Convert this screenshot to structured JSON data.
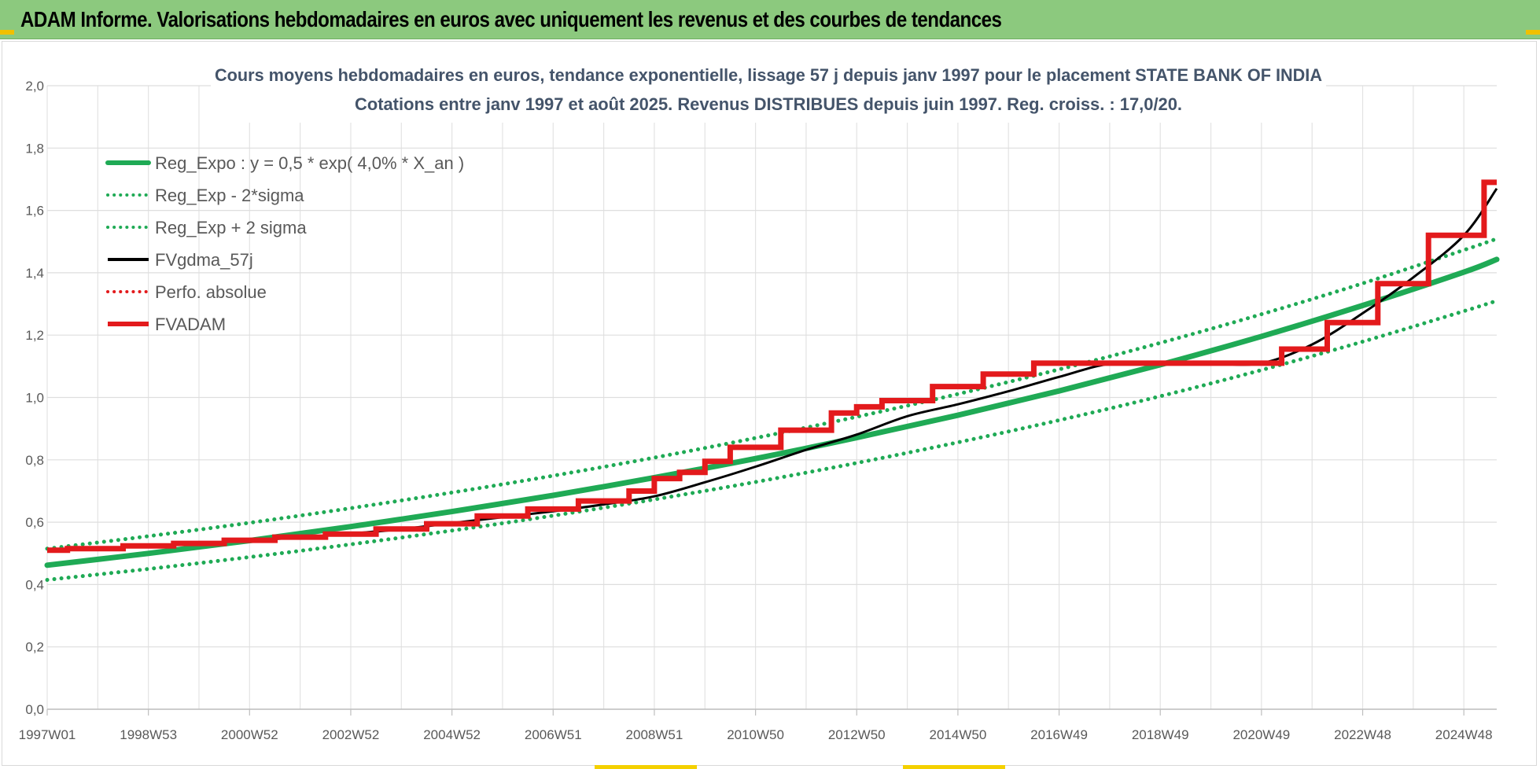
{
  "header": {
    "title": "ADAM Informe. Valorisations hebdomadaires en euros avec uniquement les revenus et des courbes de tendances"
  },
  "chart_data": {
    "type": "line",
    "title": "Cours moyens hebdomadaires en euros, tendance exponentielle, lissage 57 j depuis janv 1997  pour le placement STATE BANK OF INDIA",
    "subtitle": "Cotations entre janv 1997 et août 2025.  Revenus DISTRIBUES depuis juin 1997.  Reg. croiss. : 17,0/20.",
    "xlabel": "",
    "ylabel": "",
    "ylim": [
      0,
      2.0
    ],
    "xlim": [
      1997.0,
      2025.65
    ],
    "yticks": [
      "0,0",
      "0,2",
      "0,4",
      "0,6",
      "0,8",
      "1,0",
      "1,2",
      "1,4",
      "1,6",
      "1,8",
      "2,0"
    ],
    "xticks": [
      {
        "label": "1997W01",
        "x": 1997.0
      },
      {
        "label": "1998W53",
        "x": 1999.0
      },
      {
        "label": "2000W52",
        "x": 2001.0
      },
      {
        "label": "2002W52",
        "x": 2003.0
      },
      {
        "label": "2004W52",
        "x": 2005.0
      },
      {
        "label": "2006W51",
        "x": 2007.0
      },
      {
        "label": "2008W51",
        "x": 2009.0
      },
      {
        "label": "2010W50",
        "x": 2011.0
      },
      {
        "label": "2012W50",
        "x": 2013.0
      },
      {
        "label": "2014W50",
        "x": 2015.0
      },
      {
        "label": "2016W49",
        "x": 2017.0
      },
      {
        "label": "2018W49",
        "x": 2019.0
      },
      {
        "label": "2020W49",
        "x": 2021.0
      },
      {
        "label": "2022W48",
        "x": 2023.0
      },
      {
        "label": "2024W48",
        "x": 2025.0
      }
    ],
    "grid": true,
    "legend_position": "top-left",
    "series": [
      {
        "name": "Reg_Expo : y = 0,5 * exp( 4,0% *  X_an )",
        "style": "solid-thick",
        "color": "#1faa55",
        "x": [
          1997.0,
          1999.0,
          2001.0,
          2003.0,
          2005.0,
          2007.0,
          2009.0,
          2011.0,
          2013.0,
          2015.0,
          2017.0,
          2019.0,
          2021.0,
          2023.0,
          2025.0,
          2025.65
        ],
        "y": [
          0.462,
          0.5,
          0.541,
          0.586,
          0.634,
          0.686,
          0.743,
          0.804,
          0.871,
          0.943,
          1.021,
          1.105,
          1.196,
          1.295,
          1.402,
          1.443
        ]
      },
      {
        "name": "Reg_Exp - 2*sigma",
        "style": "dotted",
        "color": "#1faa55",
        "x": [
          1997.0,
          1999.0,
          2001.0,
          2003.0,
          2005.0,
          2007.0,
          2009.0,
          2011.0,
          2013.0,
          2015.0,
          2017.0,
          2019.0,
          2021.0,
          2023.0,
          2025.0,
          2025.65
        ],
        "y": [
          0.415,
          0.45,
          0.488,
          0.529,
          0.573,
          0.621,
          0.673,
          0.729,
          0.79,
          0.856,
          0.927,
          1.004,
          1.088,
          1.179,
          1.277,
          1.31
        ]
      },
      {
        "name": "Reg_Exp + 2 sigma",
        "style": "dotted",
        "color": "#1faa55",
        "x": [
          1997.0,
          1999.0,
          2001.0,
          2003.0,
          2005.0,
          2007.0,
          2009.0,
          2011.0,
          2013.0,
          2015.0,
          2017.0,
          2019.0,
          2021.0,
          2023.0,
          2025.0,
          2025.65
        ],
        "y": [
          0.515,
          0.555,
          0.598,
          0.645,
          0.695,
          0.749,
          0.807,
          0.87,
          0.938,
          1.011,
          1.09,
          1.175,
          1.267,
          1.366,
          1.473,
          1.509
        ]
      },
      {
        "name": "FVgdma_57j",
        "style": "solid",
        "color": "#000000",
        "x": [
          1997.0,
          1998.0,
          1999.0,
          2000.0,
          2001.0,
          2002.0,
          2003.0,
          2004.0,
          2005.0,
          2006.0,
          2007.0,
          2008.0,
          2009.0,
          2010.0,
          2011.0,
          2012.0,
          2013.0,
          2014.0,
          2015.0,
          2016.0,
          2017.0,
          2018.0,
          2019.0,
          2020.0,
          2021.0,
          2022.0,
          2023.0,
          2024.0,
          2025.0,
          2025.65
        ],
        "y": [
          0.508,
          0.516,
          0.523,
          0.532,
          0.541,
          0.551,
          0.563,
          0.578,
          0.597,
          0.616,
          0.635,
          0.657,
          0.683,
          0.728,
          0.778,
          0.832,
          0.881,
          0.94,
          0.978,
          1.02,
          1.066,
          1.108,
          1.108,
          1.108,
          1.11,
          1.17,
          1.27,
          1.385,
          1.52,
          1.67
        ]
      },
      {
        "name": "Perfo. absolue",
        "style": "dotted",
        "color": "#e31a1c",
        "x": [],
        "y": []
      },
      {
        "name": "FVADAM",
        "style": "step-thick",
        "color": "#e31a1c",
        "x": [
          1997.0,
          1997.4,
          1998.5,
          1999.5,
          2000.5,
          2001.5,
          2002.5,
          2003.5,
          2004.5,
          2005.5,
          2006.5,
          2007.5,
          2008.5,
          2009.0,
          2009.5,
          2010.0,
          2010.5,
          2011.5,
          2012.5,
          2013.0,
          2013.5,
          2014.5,
          2015.5,
          2016.5,
          2021.4,
          2022.3,
          2023.3,
          2024.3,
          2025.4,
          2025.65
        ],
        "y": [
          0.51,
          0.515,
          0.524,
          0.532,
          0.542,
          0.552,
          0.562,
          0.578,
          0.595,
          0.62,
          0.642,
          0.668,
          0.7,
          0.74,
          0.76,
          0.795,
          0.84,
          0.895,
          0.95,
          0.97,
          0.99,
          1.035,
          1.075,
          1.11,
          1.155,
          1.24,
          1.365,
          1.52,
          1.69,
          1.69
        ]
      }
    ]
  }
}
